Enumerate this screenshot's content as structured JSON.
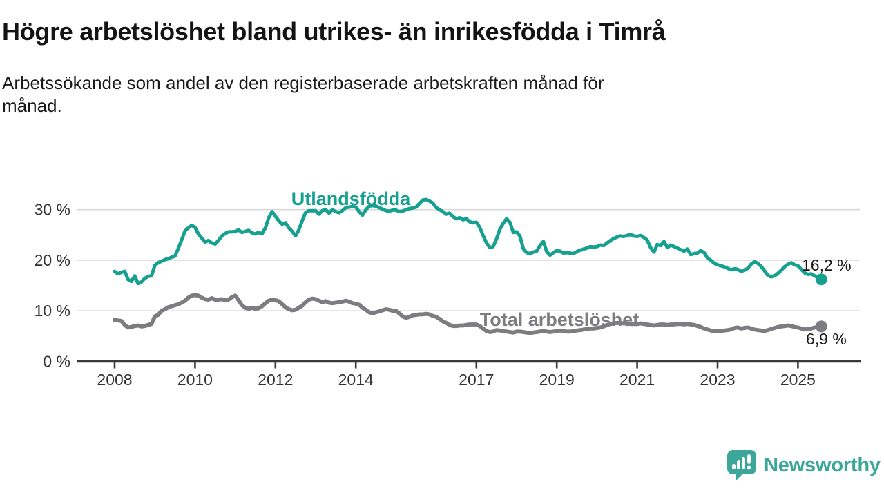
{
  "header": {
    "title": "Högre arbetslöshet bland utrikes- än inrikesfödda i Timrå",
    "subtitle_lines": [
      "Arbetssökande som andel av den registerbaserade arbetskraften månad för",
      "månad."
    ]
  },
  "chart_data": {
    "type": "line",
    "title": "",
    "xlabel": "",
    "ylabel": "",
    "unit": "%",
    "grid": "horizontal",
    "legend_position": "inline-labels",
    "x_start_year": 2008,
    "points_per_year": 12,
    "x_ticks": [
      2008,
      2010,
      2012,
      2014,
      2017,
      2019,
      2021,
      2023,
      2025
    ],
    "y_ticks": [
      {
        "value": 0,
        "label": "0 %"
      },
      {
        "value": 10,
        "label": "10 %"
      },
      {
        "value": 20,
        "label": "20 %"
      },
      {
        "value": 30,
        "label": "30 %"
      }
    ],
    "ylim": [
      0,
      33
    ],
    "colors": {
      "accent_teal": "#16a08f",
      "accent_gray": "#7c7c81",
      "axis": "#3a3a3a",
      "gridline": "#d9d9d9"
    },
    "series": [
      {
        "name": "Utlandsfödda",
        "color": "#16a08f",
        "end_label": "16,2 %",
        "end_value": 16.2,
        "values": [
          17.8,
          17.3,
          17.6,
          17.8,
          16.2,
          15.8,
          16.9,
          15.4,
          15.7,
          16.4,
          16.8,
          16.9,
          19.0,
          19.5,
          19.8,
          20.1,
          20.3,
          20.6,
          20.8,
          22.3,
          24.0,
          25.8,
          26.4,
          26.9,
          26.5,
          25.2,
          24.4,
          23.6,
          23.9,
          23.4,
          23.2,
          23.9,
          24.8,
          25.3,
          25.6,
          25.6,
          25.7,
          26.0,
          25.5,
          25.7,
          25.9,
          25.4,
          25.2,
          25.5,
          25.2,
          26.4,
          28.4,
          29.6,
          28.7,
          27.8,
          27.1,
          27.4,
          26.4,
          25.7,
          24.8,
          26.0,
          27.8,
          29.4,
          29.8,
          29.8,
          29.8,
          29.1,
          29.8,
          30.0,
          29.3,
          30.0,
          29.6,
          29.4,
          29.8,
          30.4,
          30.5,
          30.6,
          30.5,
          29.6,
          28.9,
          30.0,
          30.7,
          30.8,
          30.7,
          30.4,
          30.1,
          29.8,
          29.7,
          29.9,
          29.9,
          29.6,
          29.7,
          30.0,
          30.2,
          30.3,
          30.5,
          31.2,
          31.9,
          32.0,
          31.7,
          31.3,
          30.4,
          30.0,
          29.6,
          29.1,
          29.3,
          28.6,
          28.2,
          28.4,
          28.0,
          28.2,
          27.6,
          27.4,
          27.5,
          26.5,
          24.9,
          23.4,
          22.5,
          22.7,
          24.2,
          26.1,
          27.3,
          28.2,
          27.5,
          25.5,
          25.6,
          24.8,
          22.3,
          21.5,
          21.3,
          21.6,
          21.8,
          22.9,
          23.7,
          21.7,
          21.0,
          21.5,
          21.9,
          21.8,
          21.4,
          21.5,
          21.4,
          21.3,
          21.7,
          22.0,
          22.2,
          22.4,
          22.7,
          22.6,
          22.7,
          23.0,
          22.9,
          23.4,
          23.9,
          24.3,
          24.6,
          24.8,
          24.7,
          24.9,
          25.1,
          24.8,
          24.7,
          24.9,
          24.5,
          24.0,
          22.5,
          21.6,
          23.1,
          22.9,
          23.7,
          22.5,
          23.0,
          22.7,
          22.4,
          22.1,
          21.8,
          22.2,
          21.1,
          21.3,
          21.4,
          21.9,
          21.5,
          20.4,
          20.0,
          19.4,
          19.1,
          18.9,
          18.7,
          18.4,
          18.1,
          18.3,
          18.2,
          17.8,
          18.0,
          18.4,
          19.2,
          19.7,
          19.4,
          18.8,
          17.9,
          17.0,
          16.7,
          16.9,
          17.4,
          18.0,
          18.7,
          19.2,
          19.5,
          19.1,
          18.9,
          18.2,
          17.5,
          17.2,
          17.3,
          16.9,
          16.6,
          16.2
        ]
      },
      {
        "name": "Total arbetslöshet",
        "color": "#7c7c81",
        "end_label": "6,9 %",
        "end_value": 6.9,
        "values": [
          8.2,
          8.1,
          8.0,
          7.2,
          6.7,
          6.8,
          7.0,
          7.1,
          6.9,
          7.0,
          7.2,
          7.4,
          8.9,
          9.2,
          10.0,
          10.3,
          10.7,
          10.9,
          11.1,
          11.3,
          11.6,
          12.0,
          12.6,
          13.0,
          13.1,
          13.0,
          12.6,
          12.3,
          12.2,
          12.5,
          12.2,
          12.2,
          12.3,
          12.1,
          12.2,
          12.7,
          13.0,
          12.1,
          11.1,
          10.6,
          10.4,
          10.6,
          10.4,
          10.5,
          10.9,
          11.5,
          12.0,
          12.2,
          12.1,
          11.9,
          11.3,
          10.7,
          10.3,
          10.1,
          10.2,
          10.6,
          11.0,
          11.7,
          12.2,
          12.4,
          12.3,
          12.0,
          11.7,
          11.9,
          11.6,
          11.5,
          11.6,
          11.7,
          11.8,
          12.0,
          11.8,
          11.5,
          11.4,
          11.2,
          10.6,
          10.2,
          9.7,
          9.5,
          9.7,
          9.9,
          10.1,
          10.3,
          10.2,
          10.0,
          10.0,
          9.5,
          8.9,
          8.6,
          8.8,
          9.1,
          9.2,
          9.3,
          9.3,
          9.4,
          9.3,
          9.0,
          8.8,
          8.4,
          7.9,
          7.6,
          7.2,
          7.0,
          7.0,
          7.1,
          7.1,
          7.2,
          7.3,
          7.3,
          7.3,
          7.0,
          6.5,
          6.0,
          5.8,
          5.9,
          6.2,
          6.1,
          6.0,
          5.9,
          5.8,
          5.7,
          5.9,
          5.9,
          5.8,
          5.7,
          5.6,
          5.7,
          5.8,
          5.9,
          6.0,
          5.9,
          5.8,
          5.9,
          6.0,
          6.1,
          6.0,
          5.9,
          5.9,
          6.0,
          6.1,
          6.2,
          6.3,
          6.4,
          6.5,
          6.5,
          6.6,
          6.7,
          6.9,
          7.2,
          7.4,
          7.5,
          7.6,
          7.6,
          7.5,
          7.5,
          7.4,
          7.4,
          7.4,
          7.5,
          7.4,
          7.3,
          7.2,
          7.1,
          7.2,
          7.3,
          7.3,
          7.2,
          7.3,
          7.3,
          7.4,
          7.4,
          7.3,
          7.4,
          7.3,
          7.2,
          7.0,
          6.8,
          6.5,
          6.3,
          6.1,
          6.0,
          6.0,
          6.0,
          6.1,
          6.2,
          6.3,
          6.6,
          6.7,
          6.5,
          6.6,
          6.7,
          6.5,
          6.3,
          6.2,
          6.1,
          6.0,
          6.2,
          6.4,
          6.6,
          6.8,
          6.9,
          7.0,
          7.1,
          7.0,
          6.8,
          6.7,
          6.5,
          6.3,
          6.4,
          6.5,
          6.7,
          6.8,
          6.9
        ]
      }
    ]
  },
  "footer": {
    "brand": "Newsworthy",
    "brand_color": "#3aa79a",
    "logo_icon": "bar-chart-speech-bubble"
  }
}
